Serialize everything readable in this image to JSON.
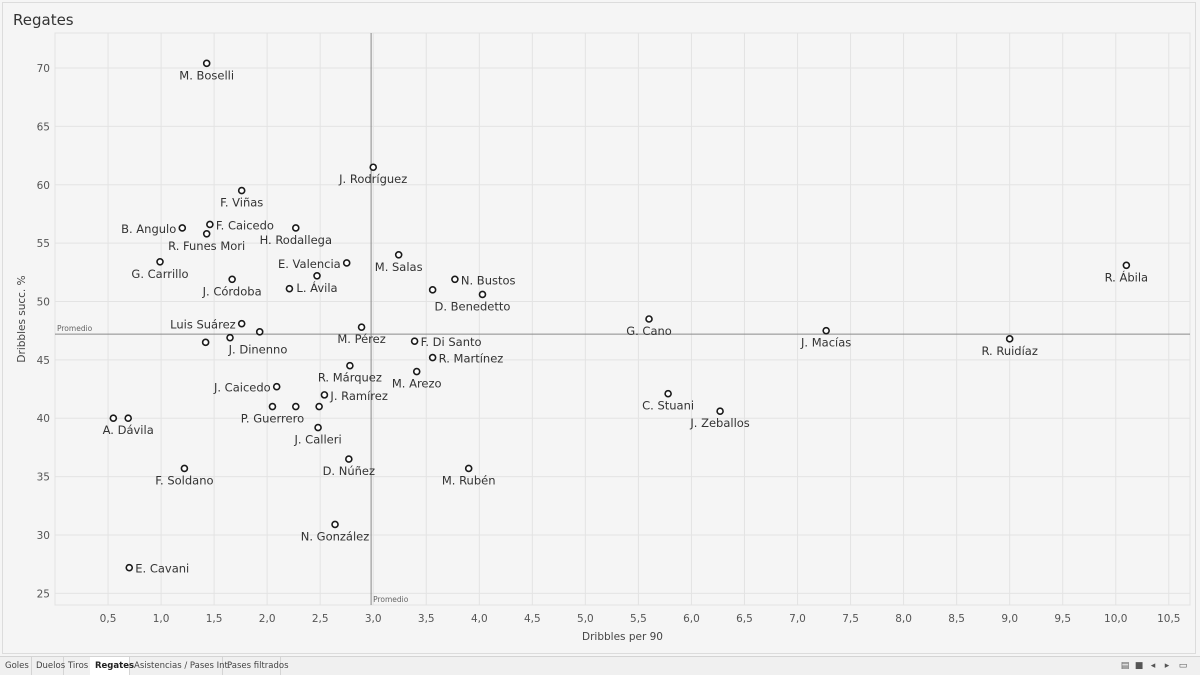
{
  "sheet": {
    "title": "Regates"
  },
  "chart_data": {
    "type": "scatter",
    "title": "Regates",
    "xlabel": "Dribbles per 90",
    "ylabel": "Dribbles succ. %",
    "xlim": [
      0.0,
      10.7
    ],
    "ylim": [
      24,
      73
    ],
    "xticks": [
      0.5,
      1.0,
      1.5,
      2.0,
      2.5,
      3.0,
      3.5,
      4.0,
      4.5,
      5.0,
      5.5,
      6.0,
      6.5,
      7.0,
      7.5,
      8.0,
      8.5,
      9.0,
      9.5,
      10.0,
      10.5
    ],
    "xtick_labels": [
      "0,5",
      "1,0",
      "1,5",
      "2,0",
      "2,5",
      "3,0",
      "3,5",
      "4,0",
      "4,5",
      "5,0",
      "5,5",
      "6,0",
      "6,5",
      "7,0",
      "7,5",
      "8,0",
      "8,5",
      "9,0",
      "9,5",
      "10,0",
      "10,5"
    ],
    "yticks": [
      25,
      30,
      35,
      40,
      45,
      50,
      55,
      60,
      65,
      70
    ],
    "ytick_labels": [
      "25",
      "30",
      "35",
      "40",
      "45",
      "50",
      "55",
      "60",
      "65",
      "70"
    ],
    "grid": true,
    "reference_lines": [
      {
        "axis": "y",
        "value": 47.2,
        "label": "Promedio"
      },
      {
        "axis": "x",
        "value": 2.98,
        "label": "Promedio"
      }
    ],
    "points": [
      {
        "name": "M. Boselli",
        "x": 1.43,
        "y": 70.4,
        "label_pos": "below"
      },
      {
        "name": "J. Rodríguez",
        "x": 3.0,
        "y": 61.5,
        "label_pos": "below"
      },
      {
        "name": "F. Viñas",
        "x": 1.76,
        "y": 59.5,
        "label_pos": "below"
      },
      {
        "name": "F. Caicedo",
        "x": 1.46,
        "y": 56.6,
        "label_pos": "right"
      },
      {
        "name": "B. Angulo",
        "x": 1.2,
        "y": 56.3,
        "label_pos": "left"
      },
      {
        "name": "R. Funes Mori",
        "x": 1.43,
        "y": 55.8,
        "label_pos": "below"
      },
      {
        "name": "H. Rodallega",
        "x": 2.27,
        "y": 56.3,
        "label_pos": "below"
      },
      {
        "name": "M. Salas",
        "x": 3.24,
        "y": 54.0,
        "label_pos": "below"
      },
      {
        "name": "G. Carrillo",
        "x": 0.99,
        "y": 53.4,
        "label_pos": "below"
      },
      {
        "name": "E. Valencia",
        "x": 2.75,
        "y": 53.3,
        "label_pos": "left"
      },
      {
        "name": "L. Ávila",
        "x": 2.47,
        "y": 52.2,
        "label_pos": "below"
      },
      {
        "name": "",
        "x": 2.21,
        "y": 51.1,
        "label_pos": "none"
      },
      {
        "name": "J. Córdoba",
        "x": 1.67,
        "y": 51.9,
        "label_pos": "below"
      },
      {
        "name": "N. Bustos",
        "x": 3.77,
        "y": 51.9,
        "label_pos": "right"
      },
      {
        "name": "",
        "x": 3.56,
        "y": 51.0,
        "label_pos": "none"
      },
      {
        "name": "D. Benedetto",
        "x": 4.03,
        "y": 50.6,
        "label_pos": "belowleft"
      },
      {
        "name": "R. Ábila",
        "x": 10.1,
        "y": 53.1,
        "label_pos": "below"
      },
      {
        "name": "G. Cano",
        "x": 5.6,
        "y": 48.5,
        "label_pos": "below"
      },
      {
        "name": "Luis Suárez",
        "x": 1.76,
        "y": 48.1,
        "label_pos": "left"
      },
      {
        "name": "M. Pérez",
        "x": 2.89,
        "y": 47.8,
        "label_pos": "below"
      },
      {
        "name": "",
        "x": 1.93,
        "y": 47.4,
        "label_pos": "none"
      },
      {
        "name": "J. Macías",
        "x": 7.27,
        "y": 47.5,
        "label_pos": "below"
      },
      {
        "name": "J. Dinenno",
        "x": 1.65,
        "y": 46.9,
        "label_pos": "belowright"
      },
      {
        "name": "",
        "x": 1.42,
        "y": 46.5,
        "label_pos": "none"
      },
      {
        "name": "F. Di Santo",
        "x": 3.39,
        "y": 46.6,
        "label_pos": "right"
      },
      {
        "name": "R. Ruidíaz",
        "x": 9.0,
        "y": 46.8,
        "label_pos": "below"
      },
      {
        "name": "R. Martínez",
        "x": 3.56,
        "y": 45.2,
        "label_pos": "right"
      },
      {
        "name": "R. Márquez",
        "x": 2.78,
        "y": 44.5,
        "label_pos": "below"
      },
      {
        "name": "M. Arezo",
        "x": 3.41,
        "y": 44.0,
        "label_pos": "below"
      },
      {
        "name": "J. Caicedo",
        "x": 2.09,
        "y": 42.7,
        "label_pos": "left"
      },
      {
        "name": "J. Ramírez",
        "x": 2.54,
        "y": 42.0,
        "label_pos": "right"
      },
      {
        "name": "C. Stuani",
        "x": 5.78,
        "y": 42.1,
        "label_pos": "below"
      },
      {
        "name": "P. Guerrero",
        "x": 2.05,
        "y": 41.0,
        "label_pos": "below"
      },
      {
        "name": "",
        "x": 2.27,
        "y": 41.0,
        "label_pos": "none"
      },
      {
        "name": "",
        "x": 2.49,
        "y": 41.0,
        "label_pos": "none"
      },
      {
        "name": "J. Zeballos",
        "x": 6.27,
        "y": 40.6,
        "label_pos": "below"
      },
      {
        "name": "",
        "x": 0.55,
        "y": 40.0,
        "label_pos": "none"
      },
      {
        "name": "A. Dávila",
        "x": 0.69,
        "y": 40.0,
        "label_pos": "below"
      },
      {
        "name": "J. Calleri",
        "x": 2.48,
        "y": 39.2,
        "label_pos": "below"
      },
      {
        "name": "D. Núñez",
        "x": 2.77,
        "y": 36.5,
        "label_pos": "below"
      },
      {
        "name": "F. Soldano",
        "x": 1.22,
        "y": 35.7,
        "label_pos": "below"
      },
      {
        "name": "M. Rubén",
        "x": 3.9,
        "y": 35.7,
        "label_pos": "below"
      },
      {
        "name": "N. González",
        "x": 2.64,
        "y": 30.9,
        "label_pos": "below"
      },
      {
        "name": "E. Cavani",
        "x": 0.7,
        "y": 27.2,
        "label_pos": "right"
      }
    ]
  },
  "tabs": [
    {
      "label": "Goles",
      "active": false
    },
    {
      "label": "Duelos",
      "active": false
    },
    {
      "label": "Tiros",
      "active": false
    },
    {
      "label": "Regates",
      "active": true
    },
    {
      "label": "Asistencias / Pases Int.",
      "active": false
    },
    {
      "label": "Pases filtrados",
      "active": false
    }
  ],
  "controls": [
    {
      "name": "sheet-sorter-icon",
      "glyph": "▤"
    },
    {
      "name": "filmstrip-icon",
      "glyph": "■"
    },
    {
      "name": "previous-sheet-icon",
      "glyph": "◂"
    },
    {
      "name": "next-sheet-icon",
      "glyph": "▸"
    },
    {
      "name": "presentation-mode-icon",
      "glyph": "▭"
    }
  ]
}
